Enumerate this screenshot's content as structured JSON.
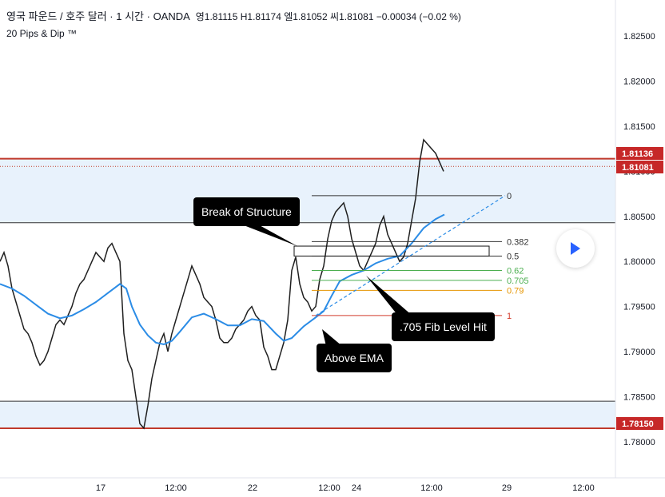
{
  "header": {
    "symbol": "영국 파운드 / 호주 달러 · 1 시간 · OANDA",
    "open_label": "영",
    "open": "1.81115",
    "high_label": "H",
    "high": "1.81174",
    "low_label": "엘",
    "low": "1.81052",
    "close_label": "씨",
    "close": "1.81081",
    "change": "−0.00034 (−0.02 %)"
  },
  "indicator_label": "20 Pips & Dip ™",
  "colors": {
    "ema": "#2b8ce6",
    "zone": "#e8f2fc",
    "resistance_line": "#c0392b",
    "fib_0618": "#4caf50",
    "fib_0705": "#4caf50",
    "fib_079": "#e69500",
    "fib_1": "#d33b2c",
    "price_badge": "#c62828"
  },
  "annotations": {
    "break_of_structure": "Break of Structure",
    "fib_hit": ".705 Fib Level Hit",
    "above_ema": "Above EMA"
  },
  "fib_levels": [
    {
      "label": "0",
      "price": 1.8073
    },
    {
      "label": "0.382",
      "price": 1.8022
    },
    {
      "label": "0.5",
      "price": 1.8006
    },
    {
      "label": "0.62",
      "price": 1.799
    },
    {
      "label": "0.705",
      "price": 1.7979
    },
    {
      "label": "0.79",
      "price": 1.7968
    },
    {
      "label": "1",
      "price": 1.794
    }
  ],
  "price_badges": [
    {
      "label": "1.81136",
      "price": 1.81136
    },
    {
      "label": "1.81081",
      "price": 1.81081
    },
    {
      "label": "1.78150",
      "price": 1.7815
    }
  ],
  "chart_data": {
    "type": "line",
    "title": "",
    "xlabel": "",
    "ylabel": "",
    "ylim": [
      1.776,
      1.829
    ],
    "y_ticks": [
      "1.82500",
      "1.82000",
      "1.81500",
      "1.81000",
      "1.80500",
      "1.80000",
      "1.79500",
      "1.79000",
      "1.78500",
      "1.78000"
    ],
    "x_ticks": [
      "17",
      "12:00",
      "22",
      "12:00",
      "24",
      "12:00",
      "29",
      "12:00"
    ],
    "zones": [
      {
        "from": 1.8043,
        "to": 1.8114
      },
      {
        "from": 1.7815,
        "to": 1.7845
      }
    ],
    "series": [
      {
        "x": [
          0,
          5,
          10,
          15,
          20,
          25,
          30,
          35,
          40,
          45,
          50,
          55,
          60,
          65,
          70,
          75,
          80,
          85,
          90,
          95,
          100,
          105,
          110,
          115,
          120,
          125,
          130,
          135,
          140,
          145,
          150,
          155,
          160,
          165,
          170,
          175,
          180,
          185,
          190,
          195,
          200,
          205,
          210,
          215,
          220,
          225,
          230,
          235,
          240,
          245,
          250,
          255,
          260,
          265,
          270,
          275,
          280,
          285,
          290,
          295,
          300,
          305,
          310,
          315,
          320,
          325,
          330,
          335,
          340,
          345,
          350,
          355,
          360,
          365,
          370,
          375,
          380,
          385,
          390,
          395,
          400,
          405,
          410,
          415,
          420,
          425,
          430,
          435,
          440,
          445,
          450,
          455,
          460,
          465,
          470,
          475,
          480,
          485,
          490,
          495,
          500,
          505,
          510,
          515,
          520,
          525,
          530,
          535,
          540,
          545,
          550,
          555
        ],
        "values": [
          1.8,
          1.801,
          1.7995,
          1.797,
          1.7955,
          1.794,
          1.7925,
          1.792,
          1.791,
          1.7895,
          1.7885,
          1.789,
          1.79,
          1.7915,
          1.793,
          1.7935,
          1.793,
          1.794,
          1.795,
          1.7965,
          1.7975,
          1.798,
          1.799,
          1.8,
          1.801,
          1.8005,
          1.8,
          1.8015,
          1.802,
          1.801,
          1.8,
          1.792,
          1.789,
          1.788,
          1.785,
          1.782,
          1.7815,
          1.784,
          1.787,
          1.789,
          1.791,
          1.792,
          1.79,
          1.792,
          1.7935,
          1.795,
          1.7965,
          1.798,
          1.7995,
          1.7985,
          1.7975,
          1.796,
          1.7955,
          1.795,
          1.7935,
          1.7915,
          1.791,
          1.791,
          1.7915,
          1.7925,
          1.793,
          1.7935,
          1.7945,
          1.795,
          1.794,
          1.7935,
          1.7905,
          1.7895,
          1.788,
          1.788,
          1.7895,
          1.791,
          1.7935,
          1.799,
          1.8005,
          1.7975,
          1.796,
          1.7955,
          1.7945,
          1.795,
          1.798,
          1.7995,
          1.8025,
          1.8045,
          1.8055,
          1.806,
          1.8065,
          1.805,
          1.8025,
          1.801,
          1.7995,
          1.799,
          1.8,
          1.801,
          1.802,
          1.804,
          1.805,
          1.803,
          1.802,
          1.801,
          1.8,
          1.8005,
          1.802,
          1.8045,
          1.807,
          1.811,
          1.8135,
          1.813,
          1.8125,
          1.812,
          1.811,
          1.81
        ]
      },
      {
        "name": "EMA",
        "x": [
          0,
          15,
          30,
          45,
          60,
          75,
          90,
          105,
          120,
          135,
          150,
          158,
          165,
          175,
          185,
          195,
          205,
          215,
          225,
          240,
          255,
          270,
          285,
          300,
          315,
          330,
          345,
          355,
          365,
          380,
          395,
          405,
          415,
          425,
          440,
          455,
          470,
          485,
          500,
          515,
          530,
          545,
          556
        ],
        "values": [
          1.7975,
          1.797,
          1.7962,
          1.7952,
          1.7942,
          1.7937,
          1.794,
          1.7947,
          1.7955,
          1.7965,
          1.7975,
          1.797,
          1.795,
          1.793,
          1.7918,
          1.791,
          1.7908,
          1.7912,
          1.7922,
          1.7938,
          1.7942,
          1.7936,
          1.7929,
          1.7929,
          1.7936,
          1.7934,
          1.792,
          1.7912,
          1.7915,
          1.7928,
          1.7938,
          1.7945,
          1.7962,
          1.7978,
          1.7985,
          1.799,
          1.7998,
          1.8003,
          1.8006,
          1.802,
          1.8037,
          1.8047,
          1.8052
        ]
      }
    ]
  }
}
